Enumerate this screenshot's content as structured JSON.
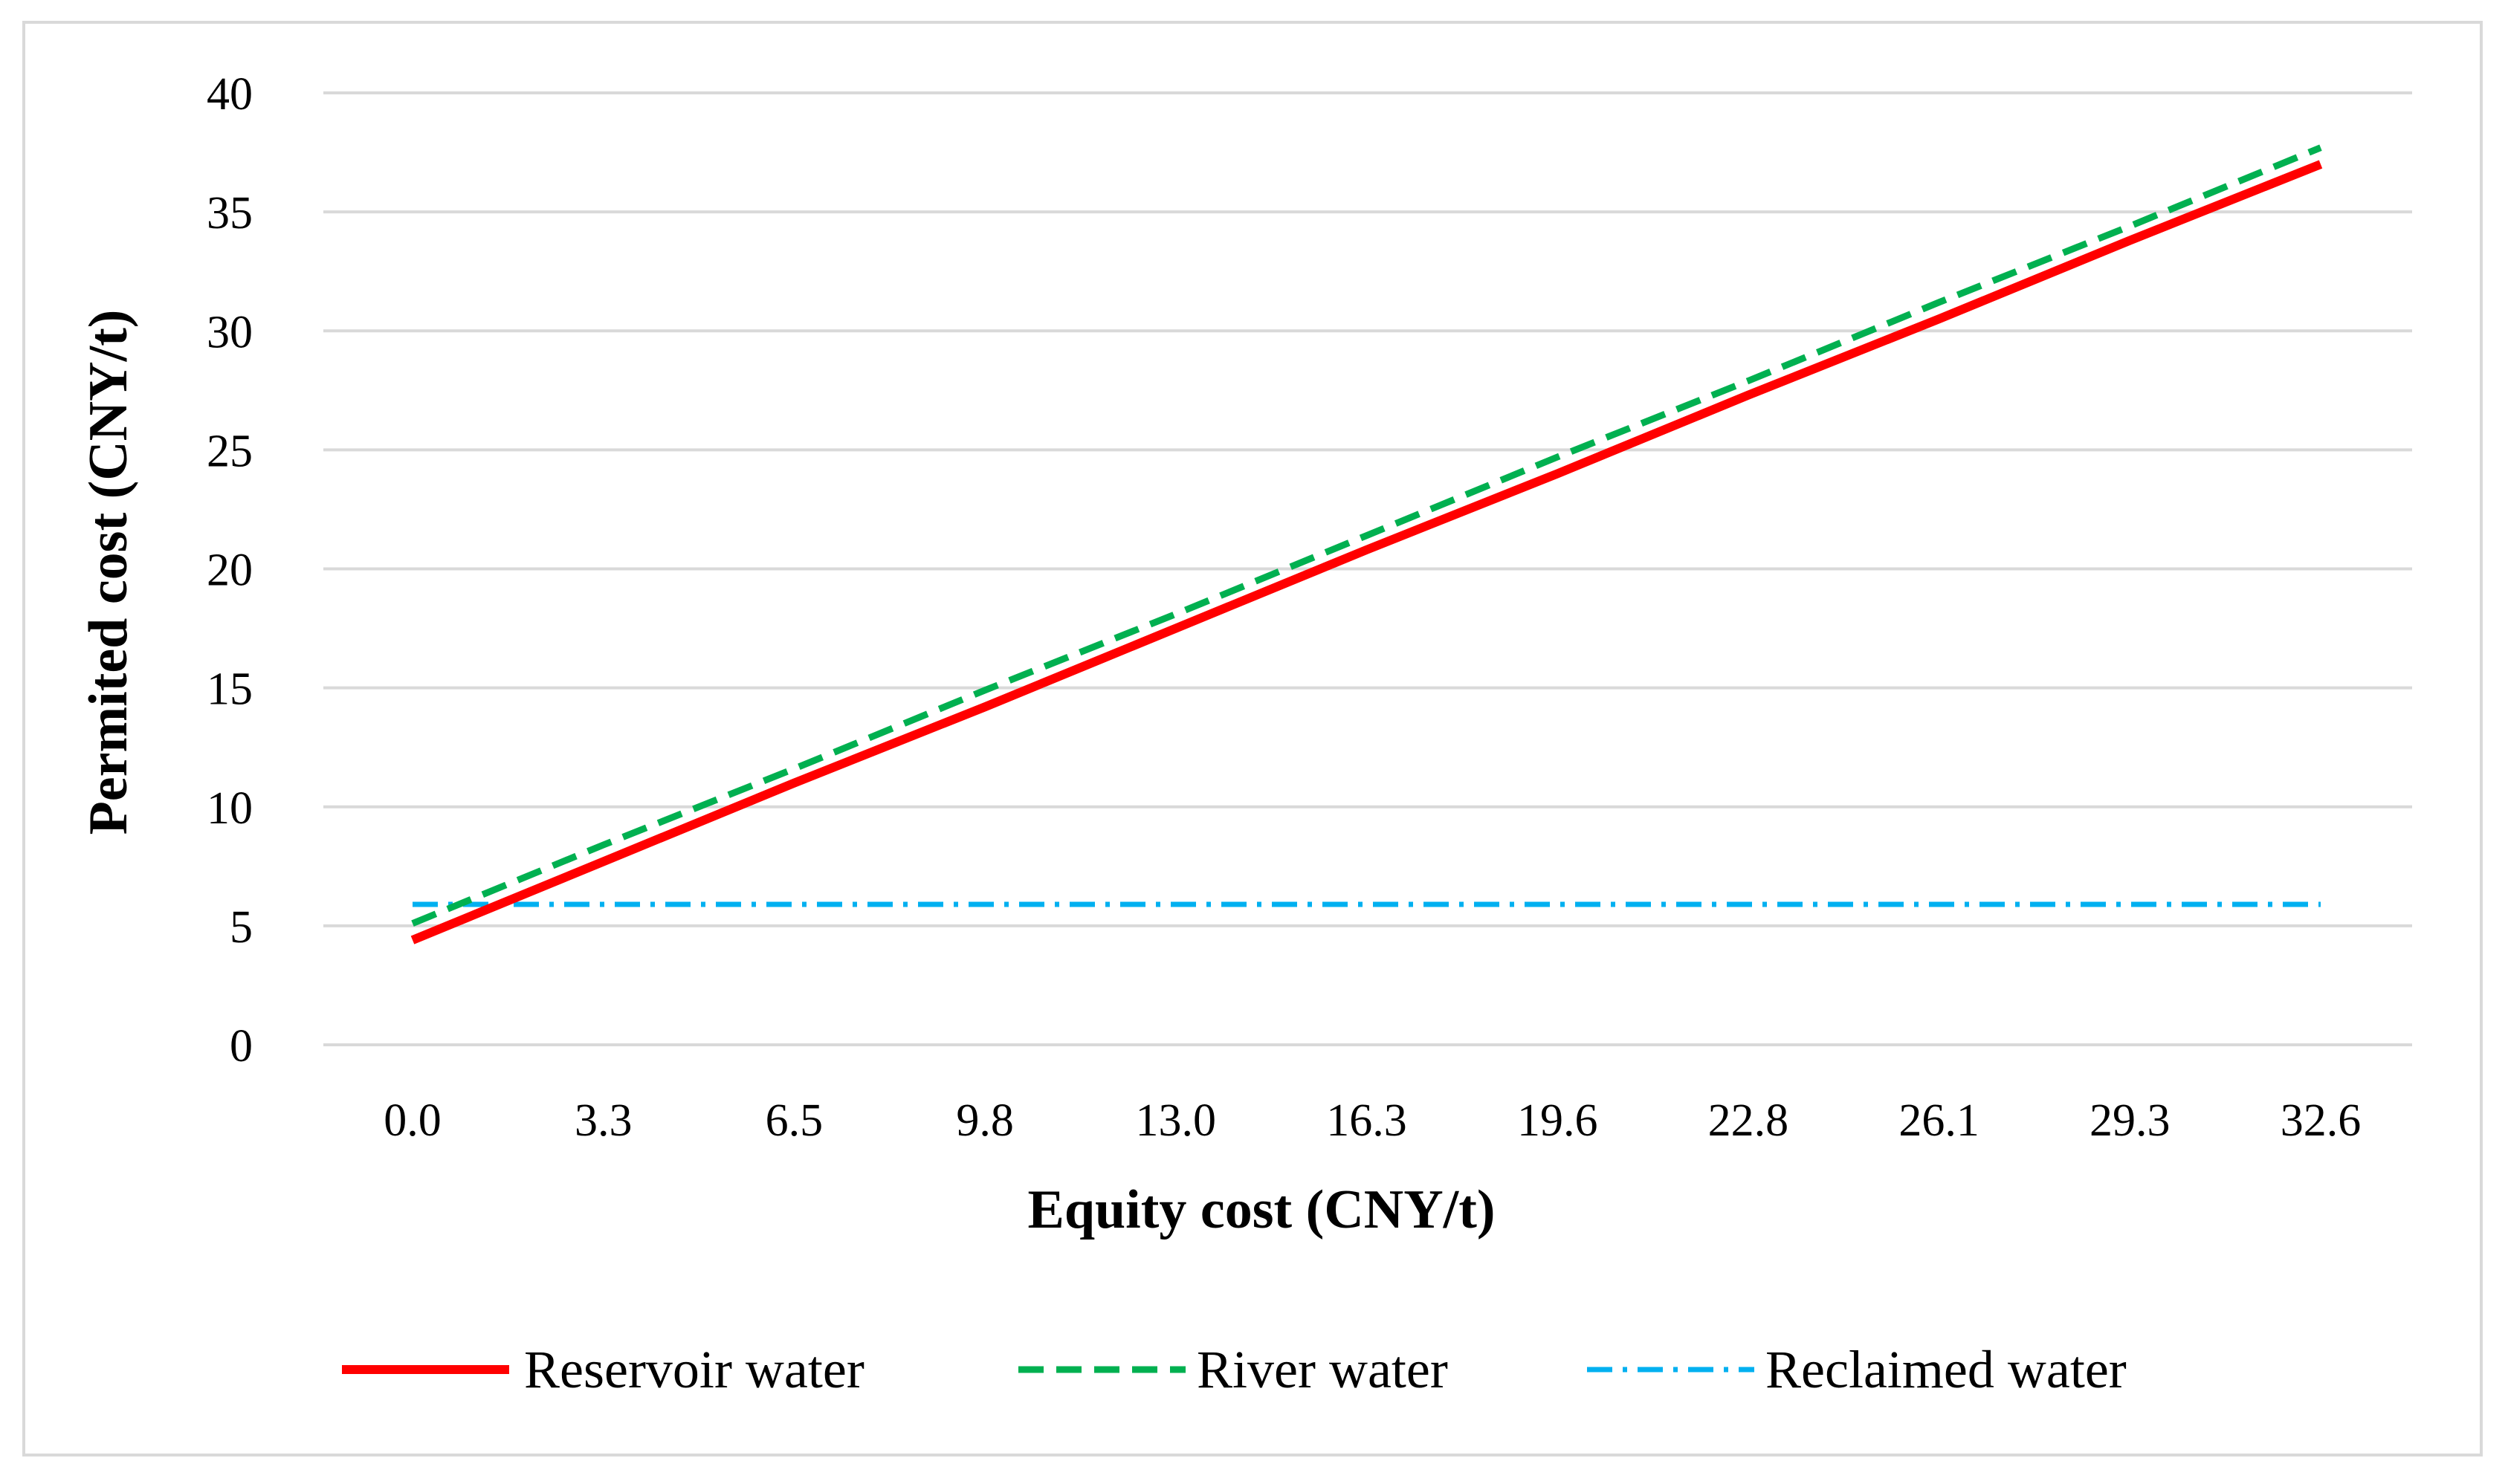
{
  "chart_data": {
    "type": "line",
    "title": "",
    "xlabel": "Equity cost (CNY/t)",
    "ylabel": "Permited cost (CNY/t)",
    "categories": [
      "0.0",
      "3.3",
      "6.5",
      "9.8",
      "13.0",
      "16.3",
      "19.6",
      "22.8",
      "26.1",
      "29.3",
      "32.6"
    ],
    "ylim": [
      0,
      40
    ],
    "yticks": [
      "0",
      "5",
      "10",
      "15",
      "20",
      "25",
      "30",
      "35",
      "40"
    ],
    "ytick_values": [
      0,
      5,
      10,
      15,
      20,
      25,
      30,
      35,
      40
    ],
    "grid": true,
    "legend_position": "bottom",
    "series": [
      {
        "name": "Reservoir water",
        "style": "solid",
        "color": "#ff0000",
        "values": [
          4.4,
          7.7,
          11.0,
          14.2,
          17.5,
          20.8,
          24.0,
          27.3,
          30.5,
          33.8,
          37.0
        ]
      },
      {
        "name": "River water",
        "style": "dashed",
        "color": "#00b050",
        "values": [
          5.1,
          8.4,
          11.6,
          14.9,
          18.1,
          21.4,
          24.7,
          27.9,
          31.2,
          34.4,
          37.7
        ]
      },
      {
        "name": "Reclaimed water",
        "style": "dash-dot",
        "color": "#00b0f0",
        "values": [
          5.9,
          5.9,
          5.9,
          5.9,
          5.9,
          5.9,
          5.9,
          5.9,
          5.9,
          5.9,
          5.9
        ]
      }
    ]
  }
}
